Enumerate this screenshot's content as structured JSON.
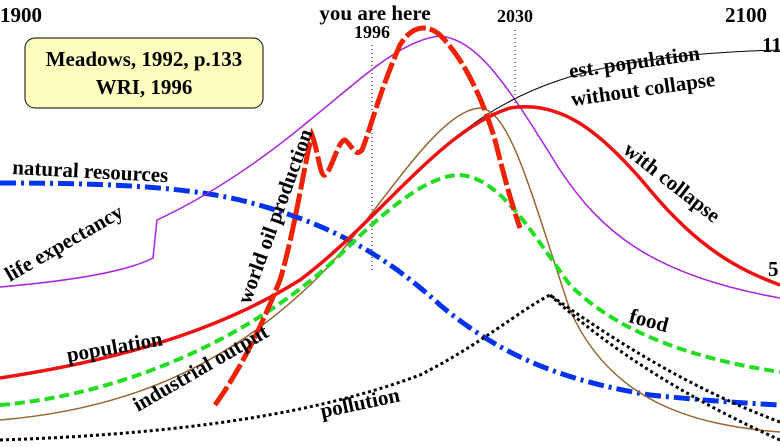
{
  "header": {
    "start_year": "1900",
    "marker": "you are here",
    "marker_year": "1996",
    "year_2030": "2030",
    "end_year": "2100",
    "right_top": "11",
    "right_mid": "5"
  },
  "source": {
    "line1": "Meadows, 1992, p.133",
    "line2": "WRI, 1996"
  },
  "labels": {
    "est_population_1": "est. population",
    "est_population_2": "without collapse",
    "with_collapse": "with collapse",
    "natural_resources": "natural resources",
    "life_expectancy": "life expectancy",
    "oil": "world oil production",
    "population": "population",
    "industrial_output": "industrial output",
    "food": "food",
    "pollution": "pollution"
  }
}
